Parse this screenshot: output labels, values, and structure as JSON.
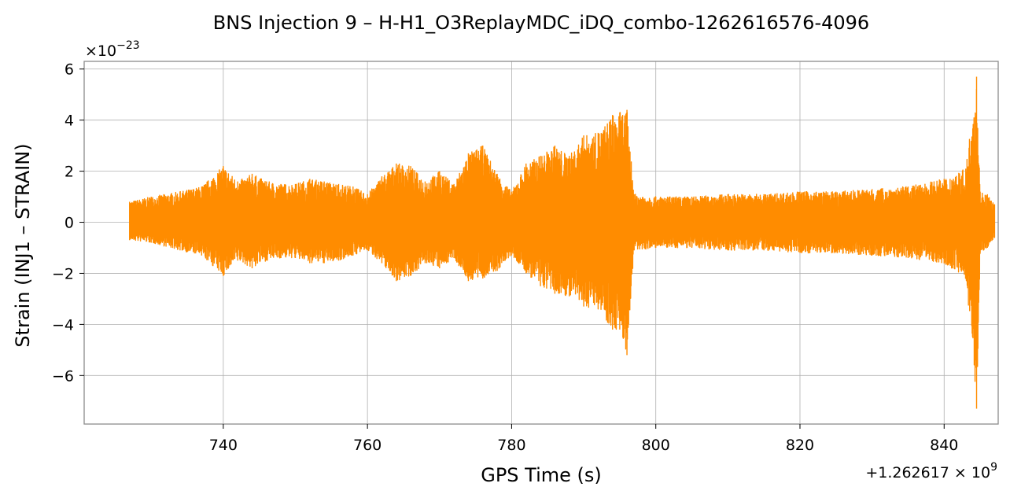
{
  "chart_data": {
    "type": "line",
    "title": "BNS Injection 9 – H-H1_O3ReplayMDC_iDQ_combo-1262616576-4096",
    "xlabel": "GPS Time (s)",
    "ylabel": "Strain (INJ1 – STRAIN)",
    "x_offset_label": "+1.262617",
    "x_offset_exp_label": "9",
    "y_multiplier_label": "10",
    "y_multiplier_exp_label": "−23",
    "xlim": [
      720.7,
      847.5
    ],
    "ylim": [
      -7.9,
      6.3
    ],
    "xticks": [
      740,
      760,
      780,
      800,
      820,
      840
    ],
    "xtick_labels": [
      "740",
      "760",
      "780",
      "800",
      "820",
      "840"
    ],
    "yticks": [
      -6,
      -4,
      -2,
      0,
      2,
      4,
      6
    ],
    "ytick_labels": [
      "−6",
      "−4",
      "−2",
      "0",
      "2",
      "4",
      "6"
    ],
    "grid": true,
    "series": [
      {
        "color": "#ff8c00",
        "envelope": {
          "x": [
            727,
            730,
            734,
            737,
            740,
            742,
            744,
            746,
            748,
            750,
            752,
            754,
            756,
            758,
            760,
            762,
            764,
            766,
            768,
            770,
            772,
            774,
            776,
            778,
            780,
            782,
            784,
            786,
            788,
            790,
            792,
            794,
            795,
            796,
            797,
            800,
            805,
            810,
            815,
            820,
            825,
            830,
            835,
            840,
            843,
            844.5,
            845,
            846,
            847
          ],
          "max": [
            0.8,
            1.0,
            1.2,
            1.4,
            2.2,
            1.6,
            1.9,
            1.6,
            1.5,
            1.5,
            1.7,
            1.6,
            1.5,
            1.4,
            1.1,
            1.8,
            2.3,
            2.2,
            1.6,
            2.0,
            1.5,
            2.7,
            3.0,
            1.9,
            1.2,
            2.3,
            2.6,
            3.0,
            2.6,
            3.4,
            3.5,
            4.2,
            4.3,
            4.4,
            1.1,
            1.0,
            1.0,
            1.1,
            1.1,
            1.2,
            1.2,
            1.3,
            1.4,
            1.7,
            2.1,
            5.7,
            1.2,
            1.1,
            0.7
          ],
          "min": [
            -0.7,
            -0.8,
            -1.1,
            -1.3,
            -2.1,
            -1.5,
            -1.8,
            -1.5,
            -1.4,
            -1.4,
            -1.6,
            -1.6,
            -1.5,
            -1.3,
            -1.1,
            -1.6,
            -2.3,
            -2.1,
            -1.6,
            -1.8,
            -1.4,
            -2.3,
            -2.2,
            -1.9,
            -1.3,
            -2.0,
            -2.5,
            -2.8,
            -2.9,
            -3.3,
            -3.4,
            -4.2,
            -4.2,
            -5.2,
            -1.1,
            -1.0,
            -1.0,
            -1.1,
            -1.1,
            -1.2,
            -1.2,
            -1.3,
            -1.4,
            -1.6,
            -2.2,
            -7.3,
            -1.2,
            -1.0,
            -0.6
          ]
        }
      }
    ]
  }
}
